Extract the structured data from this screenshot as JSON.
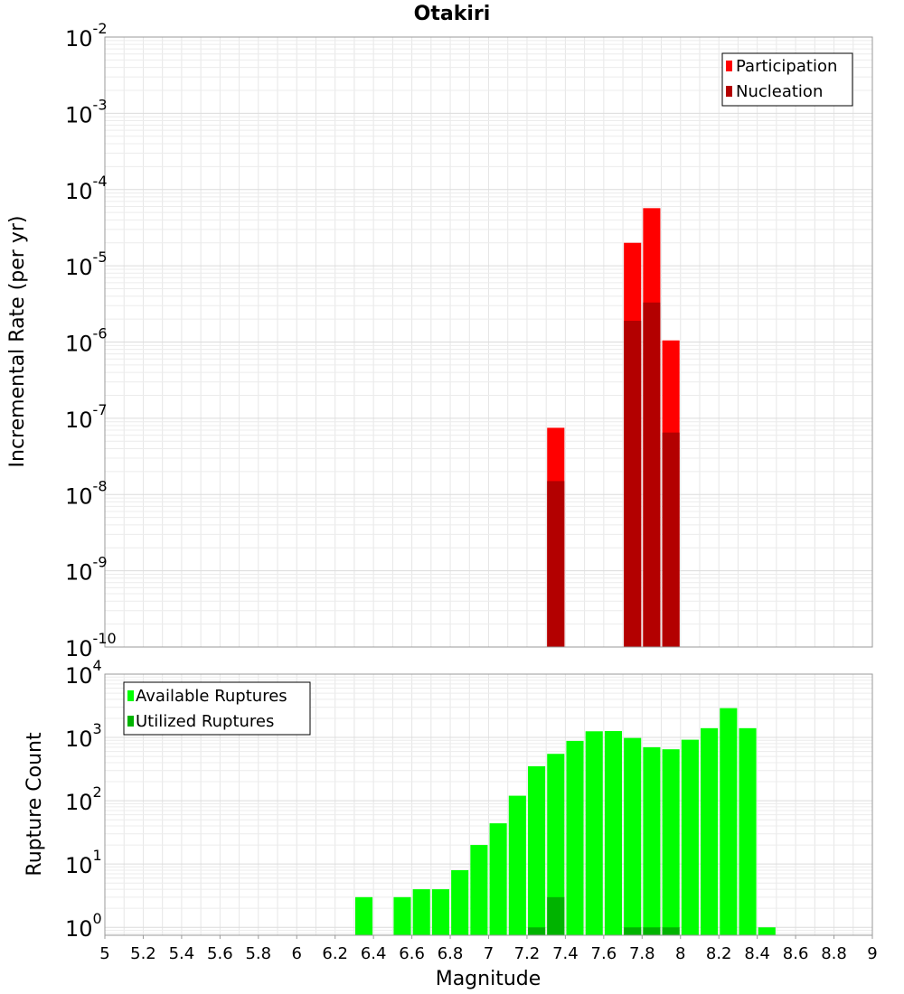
{
  "chart_data": [
    {
      "type": "bar",
      "title": "Otakiri",
      "xlabel": "",
      "ylabel": "Incremental Rate (per yr)",
      "y_scale": "log",
      "xlim": [
        5,
        9
      ],
      "ylim": [
        1e-10,
        0.01
      ],
      "grid": true,
      "legend_position": "top-right",
      "y_ticks": [
        {
          "base": "10",
          "exp": "-10",
          "value": 1e-10
        },
        {
          "base": "10",
          "exp": "-9",
          "value": 1e-09
        },
        {
          "base": "10",
          "exp": "-8",
          "value": 1e-08
        },
        {
          "base": "10",
          "exp": "-7",
          "value": 1e-07
        },
        {
          "base": "10",
          "exp": "-6",
          "value": 1e-06
        },
        {
          "base": "10",
          "exp": "-5",
          "value": 1e-05
        },
        {
          "base": "10",
          "exp": "-4",
          "value": 0.0001
        },
        {
          "base": "10",
          "exp": "-3",
          "value": 0.001
        },
        {
          "base": "10",
          "exp": "-2",
          "value": 0.01
        }
      ],
      "series": [
        {
          "name": "Participation",
          "color": "#ff0000",
          "points": [
            [
              7.35,
              7.5e-08
            ],
            [
              7.75,
              2e-05
            ],
            [
              7.85,
              5.7e-05
            ],
            [
              7.95,
              1.05e-06
            ]
          ]
        },
        {
          "name": "Nucleation",
          "color": "#b30000",
          "points": [
            [
              7.35,
              1.5e-08
            ],
            [
              7.75,
              1.9e-06
            ],
            [
              7.85,
              3.3e-06
            ],
            [
              7.95,
              6.5e-08
            ]
          ]
        }
      ]
    },
    {
      "type": "bar",
      "title": "",
      "xlabel": "Magnitude",
      "ylabel": "Rupture Count",
      "y_scale": "log",
      "xlim": [
        5,
        9
      ],
      "ylim": [
        0.75,
        10000
      ],
      "grid": true,
      "legend_position": "top-left",
      "x_ticks": [
        "5",
        "5.2",
        "5.4",
        "5.6",
        "5.8",
        "6",
        "6.2",
        "6.4",
        "6.6",
        "6.8",
        "7",
        "7.2",
        "7.4",
        "7.6",
        "7.8",
        "8",
        "8.2",
        "8.4",
        "8.6",
        "8.8",
        "9"
      ],
      "y_ticks": [
        {
          "base": "10",
          "exp": "0",
          "value": 1
        },
        {
          "base": "10",
          "exp": "1",
          "value": 10
        },
        {
          "base": "10",
          "exp": "2",
          "value": 100
        },
        {
          "base": "10",
          "exp": "3",
          "value": 1000
        },
        {
          "base": "10",
          "exp": "4",
          "value": 10000
        }
      ],
      "series": [
        {
          "name": "Available Ruptures",
          "color": "#00ff00",
          "points": [
            [
              6.35,
              3
            ],
            [
              6.55,
              3
            ],
            [
              6.65,
              4
            ],
            [
              6.75,
              4
            ],
            [
              6.85,
              8
            ],
            [
              6.95,
              20
            ],
            [
              7.05,
              44
            ],
            [
              7.15,
              120
            ],
            [
              7.25,
              350
            ],
            [
              7.35,
              550
            ],
            [
              7.45,
              880
            ],
            [
              7.55,
              1250
            ],
            [
              7.65,
              1260
            ],
            [
              7.75,
              980
            ],
            [
              7.85,
              700
            ],
            [
              7.95,
              650
            ],
            [
              8.05,
              920
            ],
            [
              8.15,
              1400
            ],
            [
              8.25,
              2900
            ],
            [
              8.35,
              1400
            ],
            [
              8.45,
              1
            ]
          ]
        },
        {
          "name": "Utilized Ruptures",
          "color": "#00b300",
          "points": [
            [
              7.25,
              1
            ],
            [
              7.35,
              3
            ],
            [
              7.75,
              1
            ],
            [
              7.85,
              1
            ],
            [
              7.95,
              1
            ]
          ]
        }
      ]
    }
  ]
}
